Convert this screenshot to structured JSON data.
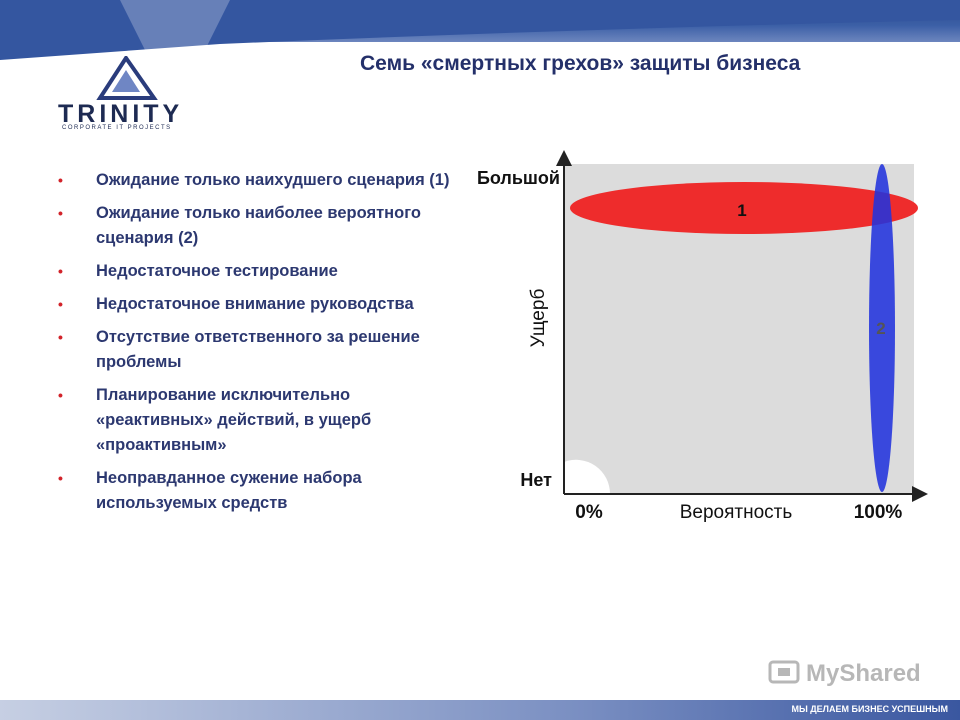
{
  "slide": {
    "title": "Семь «смертных грехов» защиты бизнеса",
    "logo": {
      "name": "TRINITY",
      "tagline": "CORPORATE IT PROJECTS"
    },
    "bullets": [
      "Ожидание только наихудшего сценария (1)",
      "Ожидание только наиболее вероятного сценария (2)",
      "Недостаточное тестирование",
      "Недостаточное внимание руководства",
      "Отсутствие ответственного за решение проблемы",
      "Планирование исключительно «реактивных» действий, в ущерб «проактивным»",
      "Неоправданное сужение набора используемых средств"
    ],
    "footer": {
      "slogan": "МЫ ДЕЛАЕМ БИЗНЕС УСПЕШНЫМ",
      "watermark": "MyShared"
    }
  },
  "diagram": {
    "y_axis": {
      "label": "Ущерб",
      "top": "Большой",
      "bottom": "Нет"
    },
    "x_axis": {
      "label": "Вероятность",
      "left": "0%",
      "right": "100%"
    },
    "regions": [
      {
        "label": "1",
        "color": "#ee2222"
      },
      {
        "label": "2",
        "color": "#2233dd"
      }
    ],
    "colors": {
      "plot_bg": "#dcdcdc",
      "accent": "#d2232a",
      "text": "#2c3870"
    }
  }
}
